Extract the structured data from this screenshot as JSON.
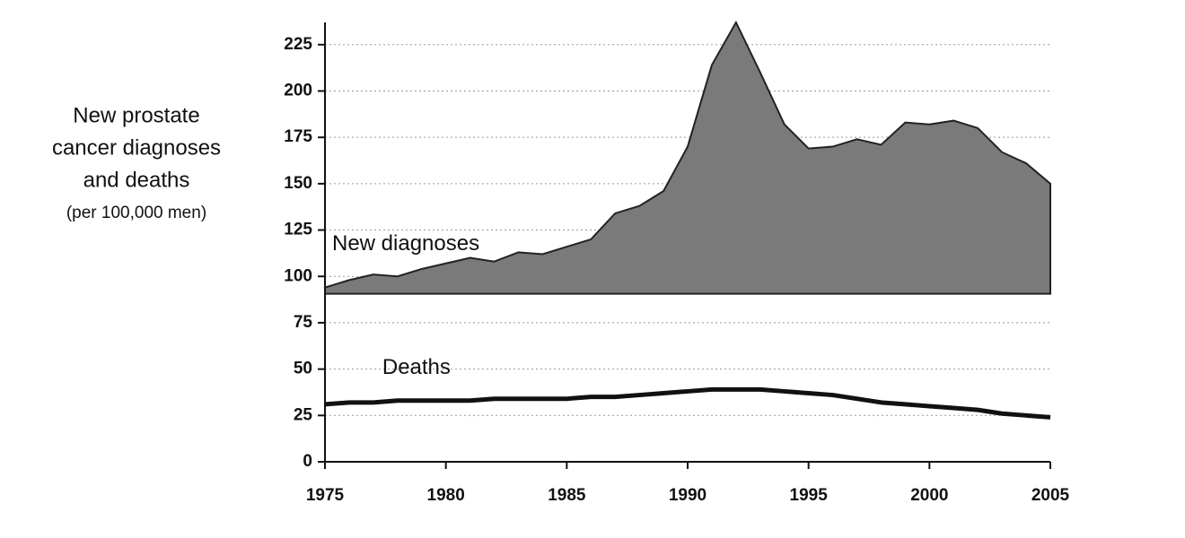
{
  "chart_data": {
    "type": "area",
    "ylabel": [
      "New prostate",
      "cancer diagnoses",
      "and deaths"
    ],
    "ylabel_unit": "(per 100,000 men)",
    "x": [
      1975,
      1976,
      1977,
      1978,
      1979,
      1980,
      1981,
      1982,
      1983,
      1984,
      1985,
      1986,
      1987,
      1988,
      1989,
      1990,
      1991,
      1992,
      1993,
      1994,
      1995,
      1996,
      1997,
      1998,
      1999,
      2000,
      2001,
      2002,
      2003,
      2004,
      2005
    ],
    "series": [
      {
        "name": "New diagnoses",
        "type": "area",
        "color": "#7a7a7a",
        "values": [
          94,
          98,
          101,
          100,
          104,
          107,
          110,
          108,
          113,
          112,
          116,
          120,
          134,
          138,
          146,
          170,
          214,
          237,
          210,
          182,
          169,
          170,
          174,
          171,
          183,
          182,
          184,
          180,
          167,
          161,
          150
        ]
      },
      {
        "name": "Deaths",
        "type": "line",
        "color": "#111111",
        "values": [
          31,
          32,
          32,
          33,
          33,
          33,
          33,
          34,
          34,
          34,
          34,
          35,
          35,
          36,
          37,
          38,
          39,
          39,
          39,
          38,
          37,
          36,
          34,
          32,
          31,
          30,
          29,
          28,
          26,
          25,
          24
        ]
      }
    ],
    "xlim": [
      1975,
      2005
    ],
    "xticks": [
      1975,
      1980,
      1985,
      1990,
      1995,
      2000,
      2005
    ],
    "ylim": [
      0,
      237
    ],
    "yticks": [
      0,
      25,
      50,
      75,
      100,
      125,
      150,
      175,
      200,
      225
    ],
    "grid": true
  }
}
